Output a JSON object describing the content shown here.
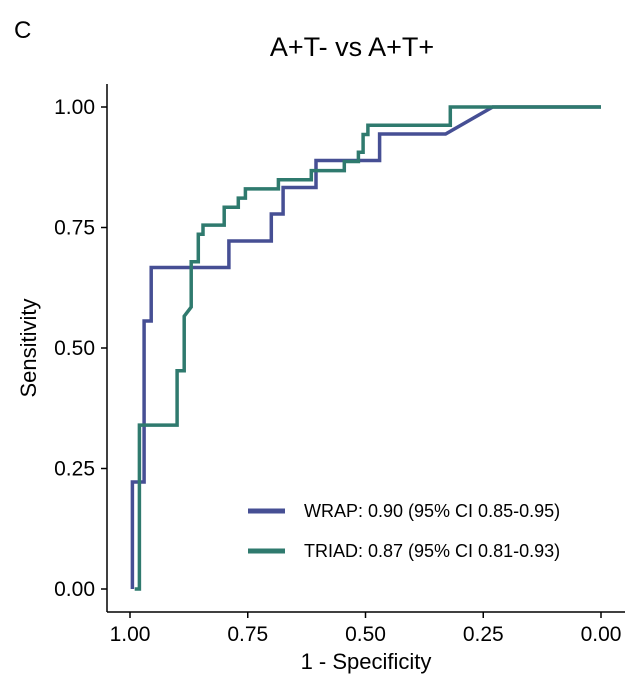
{
  "panel_label": "C",
  "chart_data": {
    "type": "line",
    "title": "A+T- vs A+T+",
    "xlabel": "1 - Specificity",
    "ylabel": "Sensitivity",
    "xlim": [
      1.0,
      0.0
    ],
    "ylim": [
      0.0,
      1.0
    ],
    "x_ticks": [
      1.0,
      0.75,
      0.5,
      0.25,
      0.0
    ],
    "x_tick_labels": [
      "1.00",
      "0.75",
      "0.50",
      "0.25",
      "0.00"
    ],
    "y_ticks": [
      0.0,
      0.25,
      0.5,
      0.75,
      1.0
    ],
    "y_tick_labels": [
      "0.00",
      "0.25",
      "0.50",
      "0.75",
      "1.00"
    ],
    "grid": false,
    "legend_position": "bottom-right",
    "series": [
      {
        "name": "WRAP: 0.90 (95% CI 0.85-0.95)",
        "color": "#464f94",
        "points": [
          [
            0.995,
            0.0
          ],
          [
            0.995,
            0.222
          ],
          [
            0.97,
            0.222
          ],
          [
            0.97,
            0.556
          ],
          [
            0.955,
            0.556
          ],
          [
            0.955,
            0.667
          ],
          [
            0.79,
            0.667
          ],
          [
            0.79,
            0.722
          ],
          [
            0.7,
            0.722
          ],
          [
            0.7,
            0.778
          ],
          [
            0.675,
            0.778
          ],
          [
            0.675,
            0.833
          ],
          [
            0.605,
            0.833
          ],
          [
            0.605,
            0.889
          ],
          [
            0.47,
            0.889
          ],
          [
            0.47,
            0.944
          ],
          [
            0.33,
            0.944
          ],
          [
            0.23,
            1.0
          ],
          [
            0.0,
            1.0
          ]
        ]
      },
      {
        "name": "TRIAD: 0.87 (95% CI 0.81-0.93)",
        "color": "#2f7a6e",
        "points": [
          [
            0.99,
            0.0
          ],
          [
            0.98,
            0.0
          ],
          [
            0.98,
            0.34
          ],
          [
            0.9,
            0.34
          ],
          [
            0.9,
            0.453
          ],
          [
            0.885,
            0.453
          ],
          [
            0.885,
            0.566
          ],
          [
            0.87,
            0.585
          ],
          [
            0.87,
            0.679
          ],
          [
            0.855,
            0.679
          ],
          [
            0.855,
            0.736
          ],
          [
            0.845,
            0.736
          ],
          [
            0.845,
            0.755
          ],
          [
            0.8,
            0.755
          ],
          [
            0.8,
            0.792
          ],
          [
            0.77,
            0.792
          ],
          [
            0.77,
            0.811
          ],
          [
            0.755,
            0.811
          ],
          [
            0.755,
            0.83
          ],
          [
            0.685,
            0.83
          ],
          [
            0.685,
            0.849
          ],
          [
            0.615,
            0.849
          ],
          [
            0.615,
            0.868
          ],
          [
            0.545,
            0.868
          ],
          [
            0.545,
            0.887
          ],
          [
            0.515,
            0.887
          ],
          [
            0.515,
            0.906
          ],
          [
            0.505,
            0.906
          ],
          [
            0.505,
            0.943
          ],
          [
            0.495,
            0.943
          ],
          [
            0.495,
            0.962
          ],
          [
            0.32,
            0.962
          ],
          [
            0.32,
            1.0
          ],
          [
            0.0,
            1.0
          ]
        ]
      }
    ]
  }
}
